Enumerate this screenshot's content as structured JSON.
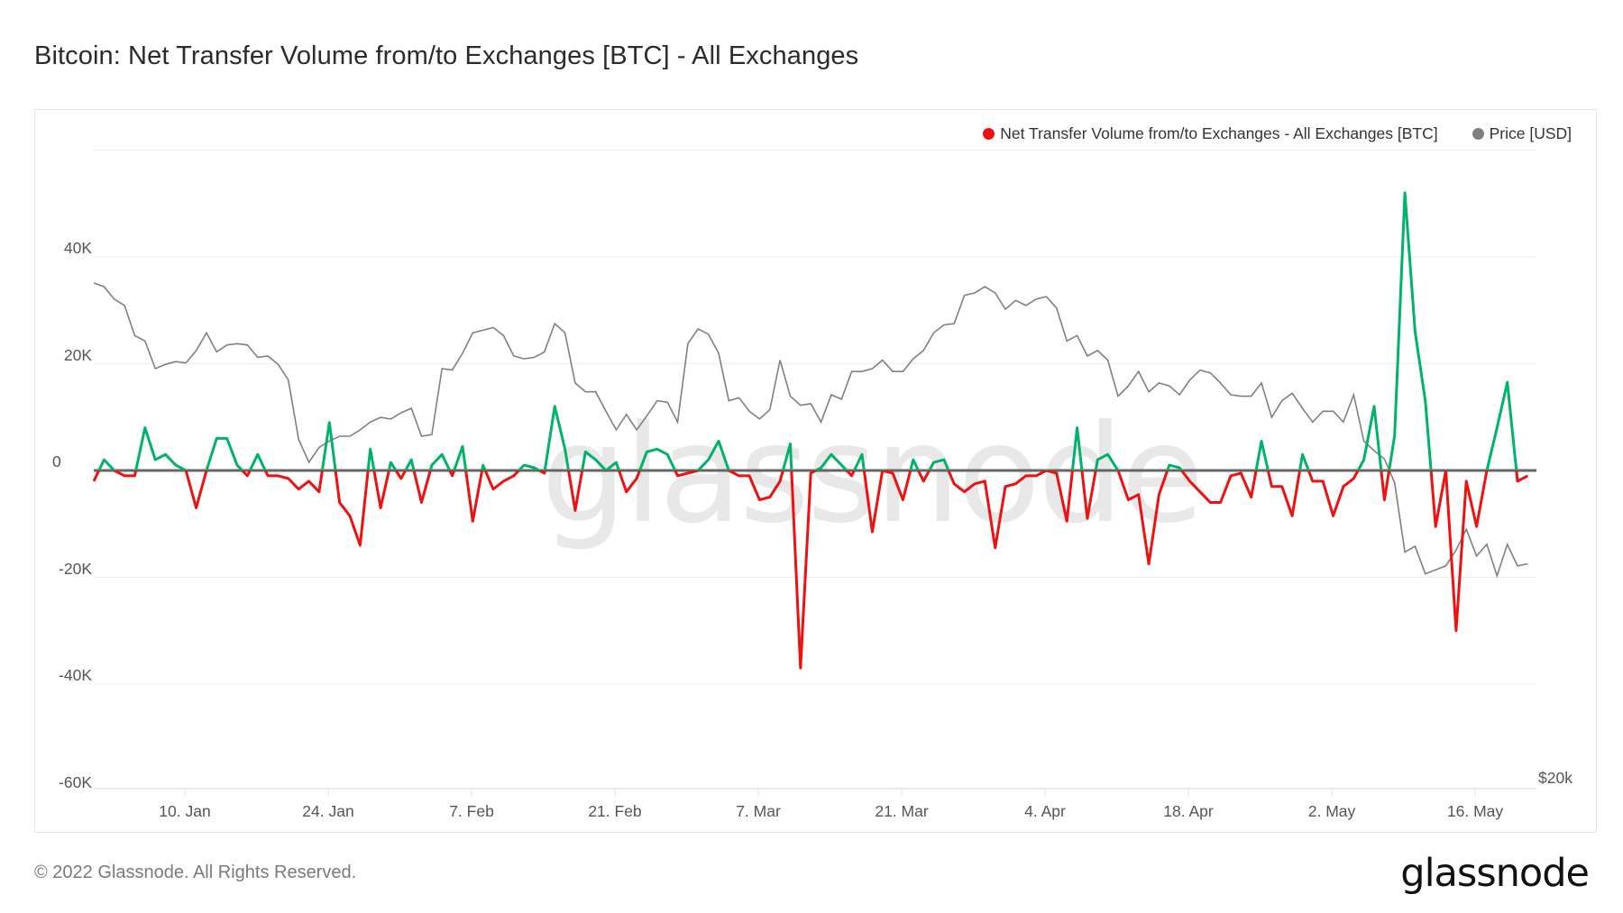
{
  "title": "Bitcoin: Net Transfer Volume from/to Exchanges [BTC] - All Exchanges",
  "legend": [
    {
      "label": "Net Transfer Volume from/to Exchanges - All Exchanges [BTC]",
      "color": "#ee1111"
    },
    {
      "label": "Price [USD]",
      "color": "#808080"
    }
  ],
  "colors": {
    "inflow_positive": "#00b36b",
    "outflow_negative": "#ee1111",
    "price": "#808080",
    "zero_line": "#666666",
    "grid": "#eeeeee"
  },
  "watermark": "glassnode",
  "footer": {
    "copyright": "© 2022 Glassnode. All Rights Reserved.",
    "logo": "glassnode"
  },
  "chart_data": {
    "type": "line",
    "title": "Bitcoin: Net Transfer Volume from/to Exchanges [BTC] - All Exchanges",
    "xlabel": "",
    "ylabel": "",
    "y_ticks": [
      "40K",
      "20K",
      "0",
      "-20K",
      "-40K",
      "-60K"
    ],
    "y_tick_values": [
      40000,
      20000,
      0,
      -20000,
      -40000,
      -60000
    ],
    "ylim": [
      -60000,
      60000
    ],
    "right_axis": {
      "ticks": [
        "$20k"
      ],
      "scale": "log"
    },
    "x_ticks": [
      "10. Jan",
      "24. Jan",
      "7. Feb",
      "21. Feb",
      "7. Mar",
      "21. Mar",
      "4. Apr",
      "18. Apr",
      "2. May",
      "16. May"
    ],
    "x_start": "2022-01-01",
    "x_step": "1 day",
    "grid": true,
    "legend_position": "top-right",
    "series": [
      {
        "name": "Net Transfer Volume from/to Exchanges - All Exchanges [BTC]",
        "axis": "left",
        "values": [
          -2000,
          2000,
          0,
          -1000,
          -1000,
          8000,
          2000,
          3000,
          1000,
          0,
          -7000,
          0,
          6000,
          6000,
          1000,
          -1000,
          3000,
          -1000,
          -1000,
          -1500,
          -3500,
          -2000,
          -4000,
          9000,
          -6000,
          -8500,
          -14000,
          4000,
          -7000,
          1500,
          -1500,
          2000,
          -6000,
          1000,
          3000,
          -1000,
          4500,
          -9500,
          1000,
          -3500,
          -2000,
          -1000,
          1000,
          500,
          -500,
          12000,
          4000,
          -7500,
          3500,
          2000,
          0,
          1500,
          -4000,
          -1500,
          3500,
          4000,
          3000,
          -1000,
          -500,
          0,
          2000,
          5500,
          0,
          -1000,
          -1000,
          -5500,
          -5000,
          -2000,
          5000,
          -37000,
          -500,
          500,
          3000,
          1000,
          -1000,
          3000,
          -11500,
          0,
          -500,
          -5500,
          2000,
          -2000,
          1500,
          2000,
          -2500,
          -4000,
          -2500,
          -2000,
          -14500,
          -3000,
          -2500,
          -1000,
          -1000,
          0,
          -500,
          -9500,
          8000,
          -9000,
          2000,
          3000,
          0,
          -5500,
          -4500,
          -17500,
          -4500,
          1000,
          500,
          -2000,
          -4000,
          -6000,
          -6000,
          -1000,
          -500,
          -5000,
          5500,
          -3000,
          -3000,
          -8500,
          3000,
          -2000,
          -2000,
          -8500,
          -3000,
          -1500,
          2000,
          12000,
          -5500,
          6500,
          52000,
          26000,
          13000,
          -10500,
          0,
          -30000,
          -2000,
          -10500,
          0,
          8000,
          16500,
          -2000,
          -1000
        ]
      },
      {
        "name": "Price [USD]",
        "axis": "right",
        "values": [
          47700,
          47400,
          46400,
          45900,
          43600,
          43200,
          41200,
          41500,
          41700,
          41600,
          42500,
          43800,
          42400,
          42900,
          43000,
          42900,
          42000,
          42100,
          41500,
          40400,
          36500,
          35100,
          36000,
          36400,
          36700,
          36700,
          37100,
          37600,
          37900,
          37800,
          38200,
          38500,
          36700,
          36800,
          41200,
          41100,
          42300,
          43800,
          44000,
          44200,
          43600,
          42100,
          41900,
          42000,
          42400,
          44500,
          43800,
          40200,
          39600,
          39600,
          38300,
          37100,
          38100,
          37100,
          38000,
          39000,
          38900,
          37600,
          43000,
          44100,
          43700,
          42300,
          39000,
          39200,
          38300,
          37800,
          38400,
          41800,
          39300,
          38700,
          38800,
          37600,
          39400,
          39100,
          41000,
          41000,
          41200,
          41800,
          41000,
          41000,
          41900,
          42500,
          43800,
          44400,
          44500,
          46700,
          46900,
          47400,
          46900,
          45600,
          46300,
          45900,
          46400,
          46600,
          45700,
          43200,
          43600,
          42100,
          42500,
          41800,
          39300,
          40000,
          41000,
          39600,
          40200,
          40000,
          39400,
          40400,
          41100,
          40900,
          40200,
          39400,
          39300,
          39300,
          40200,
          37900,
          39000,
          39500,
          38500,
          37600,
          38300,
          38300,
          37600,
          39400,
          36400,
          35800,
          35300,
          33900,
          30100,
          30400,
          29000,
          29200,
          29400,
          30200,
          31300,
          29900,
          30500,
          28900,
          30500,
          29400,
          29500
        ]
      }
    ]
  }
}
